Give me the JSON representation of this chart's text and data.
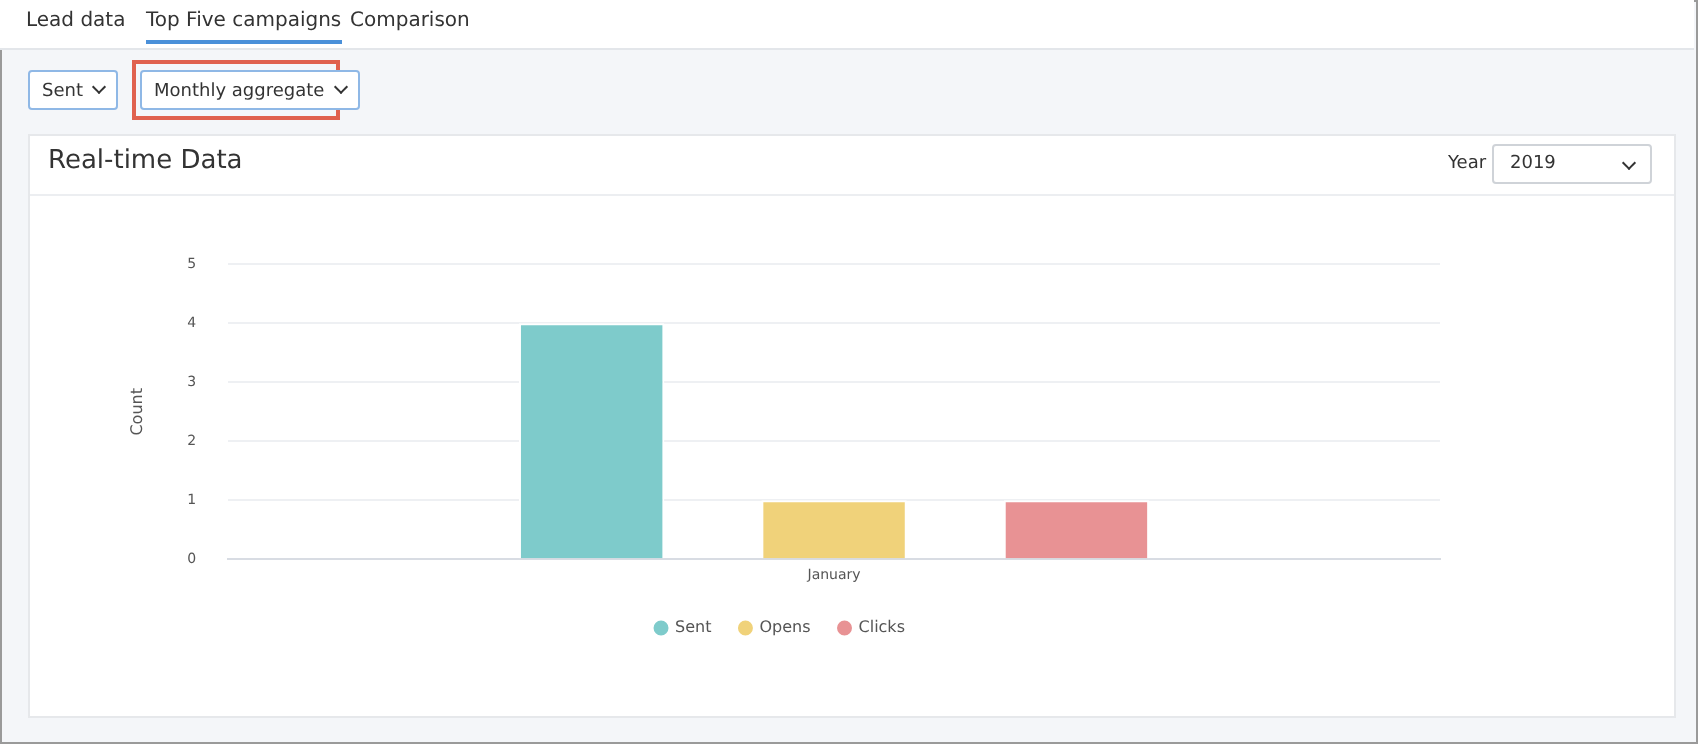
{
  "chart_data": {
    "type": "bar",
    "title": "Real-time Data",
    "ylabel": "Count",
    "categories": [
      "January"
    ],
    "series": [
      {
        "name": "Sent",
        "color": "#7ecbcb",
        "values": [
          4
        ]
      },
      {
        "name": "Opens",
        "color": "#f0d27a",
        "values": [
          1
        ]
      },
      {
        "name": "Clicks",
        "color": "#e89294",
        "values": [
          1
        ]
      }
    ],
    "ylim": [
      0,
      5
    ],
    "yticks": [
      0,
      1,
      2,
      3,
      4,
      5
    ],
    "grid": "y",
    "legend": "bottom",
    "annotations": [
      "Lead data",
      "Top Five campaigns",
      "Comparison",
      "Sent",
      "Monthly aggregate",
      "Year",
      "2019"
    ]
  }
}
